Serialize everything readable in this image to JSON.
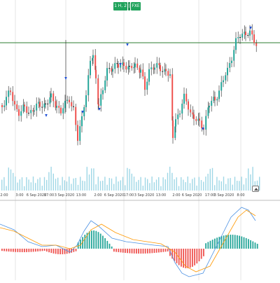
{
  "toolbar": {
    "interval_label": "1 H, 2",
    "separator_label": "|",
    "symbol_label": "FXE"
  },
  "time_axis": {
    "labels": [
      "2:00",
      "3:00",
      "6 Sep 2020",
      "17:00",
      "3 Sep 2020",
      "13:00",
      "2:00",
      "6 Sep 2020",
      "17:00",
      "3 Sep 2020",
      "13:00",
      "2:00",
      "6 Sep 2020",
      "17:00",
      "3 Sep 2020",
      "8:00"
    ]
  },
  "colors": {
    "up_candle": "#26a69a",
    "down_candle": "#ef5350",
    "doji": "#222222",
    "horizontal_line": "#2e7d32",
    "grid": "#e4e4e4",
    "volume": "#9fd7e6",
    "macd_up": "#26a69a",
    "macd_down": "#ef5350",
    "macd_line": "#4a90e2",
    "signal_line": "#ff9800",
    "marker": "#1e4fd8"
  },
  "icons": {
    "scroll_corner": "scroll-to-latest-icon"
  }
}
